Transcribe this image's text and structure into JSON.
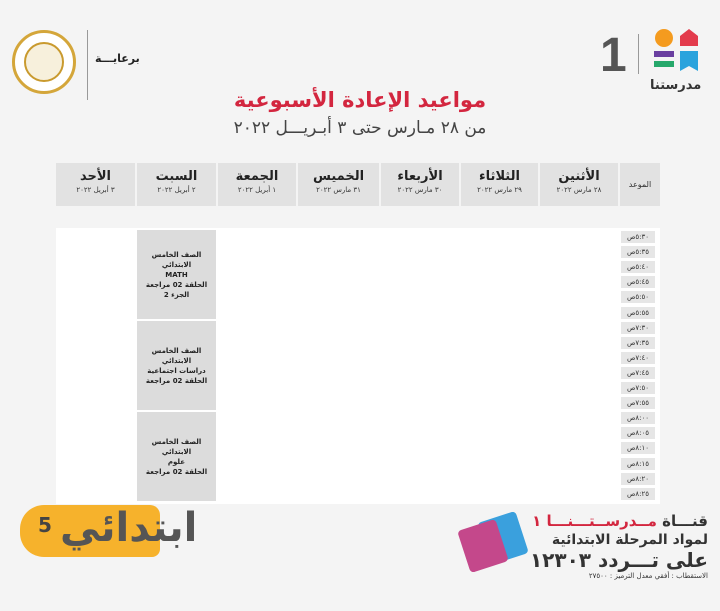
{
  "header": {
    "brand_number": "1",
    "brand_name": "مدرستنا",
    "sponsor_label": "برعايـــة"
  },
  "title": "مواعيد الإعادة الأسبوعية",
  "subtitle": "من ٢٨ مـارس حتى ٣ أبـريـــل ٢٠٢٢",
  "table": {
    "time_header": "الموعد",
    "days": [
      {
        "name": "الأثنين",
        "date": "٢٨ مارس ٢٠٢٢"
      },
      {
        "name": "الثلاثاء",
        "date": "٢٩ مارس ٢٠٢٢"
      },
      {
        "name": "الأربعاء",
        "date": "٣٠ مارس ٢٠٢٢"
      },
      {
        "name": "الخميس",
        "date": "٣١ مارس ٢٠٢٢"
      },
      {
        "name": "الجمعة",
        "date": "١ أبريل ٢٠٢٢"
      },
      {
        "name": "السبت",
        "date": "٢ أبريل ٢٠٢٢"
      },
      {
        "name": "الأحد",
        "date": "٣ أبريل ٢٠٢٢"
      }
    ],
    "times": [
      "٥:٣٠ص",
      "٥:٣٥ص",
      "٥:٤٠ص",
      "٥:٤٥ص",
      "٥:٥٠ص",
      "٥:٥٥ص",
      "٧:٣٠ص",
      "٧:٣٥ص",
      "٧:٤٠ص",
      "٧:٤٥ص",
      "٧:٥٠ص",
      "٧:٥٥ص",
      "٨:٠٠ص",
      "٨:٠٥ص",
      "٨:١٠ص",
      "٨:١٥ص",
      "٨:٢٠ص",
      "٨:٢٥ص"
    ],
    "saturday_slots": [
      {
        "lines": [
          "الصف الخامس الابتدائي",
          "MATH",
          "الحلقة 02 مراجعة",
          "الجزء 2"
        ]
      },
      {
        "lines": [
          "الصف الخامس الابتدائي",
          "دراسات اجتماعية",
          "الحلقة 02 مراجعة"
        ]
      },
      {
        "lines": [
          "الصف الخامس الابتدائي",
          "علوم",
          "الحلقة 02 مراجعة"
        ]
      }
    ]
  },
  "badge": {
    "grade_number": "5",
    "grade_label": "ابتدائي"
  },
  "promo": {
    "line1_prefix": "قنـــاة",
    "line1_brand": "مــدرســتـــنـــا ١",
    "line2": "لمواد المرحلة الابتدائية",
    "line3": "على تـــردد ١٢٣٠٣",
    "line4": "الاستقطاب : أفقي معدل الترميز : ٢٧٥٠٠"
  },
  "colors": {
    "title": "#d3263f",
    "badge": "#f6b22c"
  }
}
